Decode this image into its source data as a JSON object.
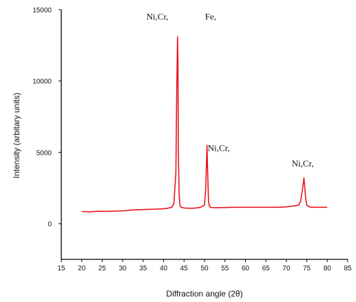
{
  "chart_data": {
    "type": "line",
    "title": "",
    "xlabel": "Diffraction angle (2θ)",
    "ylabel": "Intensity (arbitary units)",
    "xlim": [
      15,
      85
    ],
    "ylim": [
      -2500,
      15000
    ],
    "x_ticks": [
      "15",
      "20",
      "25",
      "30",
      "35",
      "40",
      "45",
      "50",
      "55",
      "60",
      "65",
      "70",
      "75",
      "80",
      "85"
    ],
    "y_ticks": [
      "0",
      "5000",
      "10000",
      "15000"
    ],
    "grid": false,
    "line_color": "#e8141c",
    "series": [
      {
        "x": [
          20,
          22,
          24,
          26,
          28,
          30,
          32,
          34,
          36,
          38,
          40,
          41,
          42,
          42.5,
          43,
          43.2,
          43.4,
          43.5,
          43.6,
          43.8,
          44,
          44.3,
          45,
          46,
          47,
          48,
          49,
          50,
          50.3,
          50.6,
          50.8,
          51,
          51.2,
          51.5,
          52,
          53,
          55,
          57,
          60,
          62,
          65,
          68,
          70,
          72,
          73,
          73.5,
          74,
          74.3,
          74.5,
          74.7,
          75,
          75.5,
          76,
          78,
          80
        ],
        "y": [
          850,
          830,
          870,
          860,
          880,
          900,
          950,
          980,
          1000,
          1020,
          1050,
          1080,
          1150,
          1400,
          3500,
          9000,
          13100,
          11500,
          5000,
          2000,
          1300,
          1150,
          1100,
          1080,
          1080,
          1100,
          1150,
          1300,
          2500,
          5500,
          3200,
          1500,
          1250,
          1150,
          1120,
          1120,
          1130,
          1150,
          1150,
          1150,
          1150,
          1150,
          1180,
          1250,
          1300,
          1600,
          2500,
          3200,
          2600,
          1800,
          1300,
          1200,
          1150,
          1150,
          1150
        ]
      }
    ],
    "annotations": [
      {
        "text": "Ni,Cr,",
        "x": 38.5,
        "y": 14300
      },
      {
        "text": "Fe,",
        "x": 51.5,
        "y": 14300
      },
      {
        "text": "Ni,Cr,",
        "x": 53.5,
        "y": 5100
      },
      {
        "text": "Ni,Cr,",
        "x": 74,
        "y": 4000
      }
    ]
  }
}
